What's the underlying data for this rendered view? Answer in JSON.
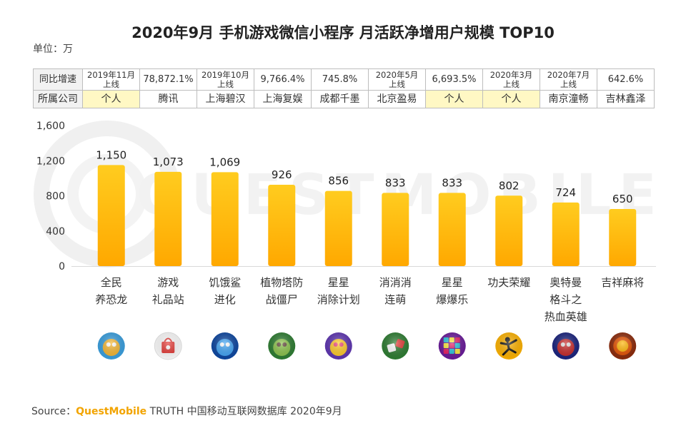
{
  "title": "2020年9月 手机游戏微信小程序 月活跃净增用户规模 TOP10",
  "unit_label": "单位：万",
  "table": {
    "row1_header": "同比增速",
    "row2_header": "所属公司",
    "growth": [
      [
        "2019年11月",
        "上线"
      ],
      [
        "78,872.1%"
      ],
      [
        "2019年10月",
        "上线"
      ],
      [
        "9,766.4%"
      ],
      [
        "745.8%"
      ],
      [
        "2020年5月",
        "上线"
      ],
      [
        "6,693.5%"
      ],
      [
        "2020年3月",
        "上线"
      ],
      [
        "2020年7月",
        "上线"
      ],
      [
        "642.6%"
      ]
    ],
    "company": [
      "个人",
      "腾讯",
      "上海碧汉",
      "上海复娱",
      "成都千墨",
      "北京盈易",
      "个人",
      "个人",
      "南京潼畅",
      "吉林鑫泽"
    ],
    "company_highlight": [
      true,
      false,
      false,
      false,
      false,
      false,
      true,
      true,
      false,
      false
    ]
  },
  "chart_data": {
    "type": "bar",
    "title": "2020年9月 手机游戏微信小程序 月活跃净增用户规模 TOP10",
    "ylabel": "单位：万",
    "xlabel": "",
    "ylim": [
      0,
      1600
    ],
    "yticks": [
      0,
      400,
      800,
      1200,
      1600
    ],
    "ytick_labels": [
      "0",
      "400",
      "800",
      "1,200",
      "1,600"
    ],
    "categories": [
      [
        "全民",
        "养恐龙"
      ],
      [
        "游戏",
        "礼品站"
      ],
      [
        "饥饿鲨",
        "进化"
      ],
      [
        "植物塔防",
        "战僵尸"
      ],
      [
        "星星",
        "消除计划"
      ],
      [
        "消消消",
        "连萌"
      ],
      [
        "星星",
        "爆爆乐"
      ],
      [
        "功夫荣耀"
      ],
      [
        "奥特曼",
        "格斗之",
        "热血英雄"
      ],
      [
        "吉祥麻将"
      ]
    ],
    "values": [
      1150,
      1073,
      1069,
      926,
      856,
      833,
      833,
      802,
      724,
      650
    ],
    "value_labels": [
      "1,150",
      "1,073",
      "1,069",
      "926",
      "856",
      "833",
      "833",
      "802",
      "724",
      "650"
    ],
    "icons": [
      "dinosaur-game-icon",
      "gift-bag-icon",
      "shark-game-icon",
      "zombie-game-icon",
      "star-candy-icon",
      "dice-game-icon",
      "color-blocks-icon",
      "kungfu-stickman-icon",
      "ultraman-icon",
      "mahjong-icon"
    ],
    "bar_color": "#ffc107",
    "bar_color_dark": "#ffab00"
  },
  "source": {
    "prefix": "Source：",
    "brand": "QuestMobile",
    "suffix": " TRUTH 中国移动互联网数据库 2020年9月"
  },
  "watermark": "QUESTMOBILE"
}
